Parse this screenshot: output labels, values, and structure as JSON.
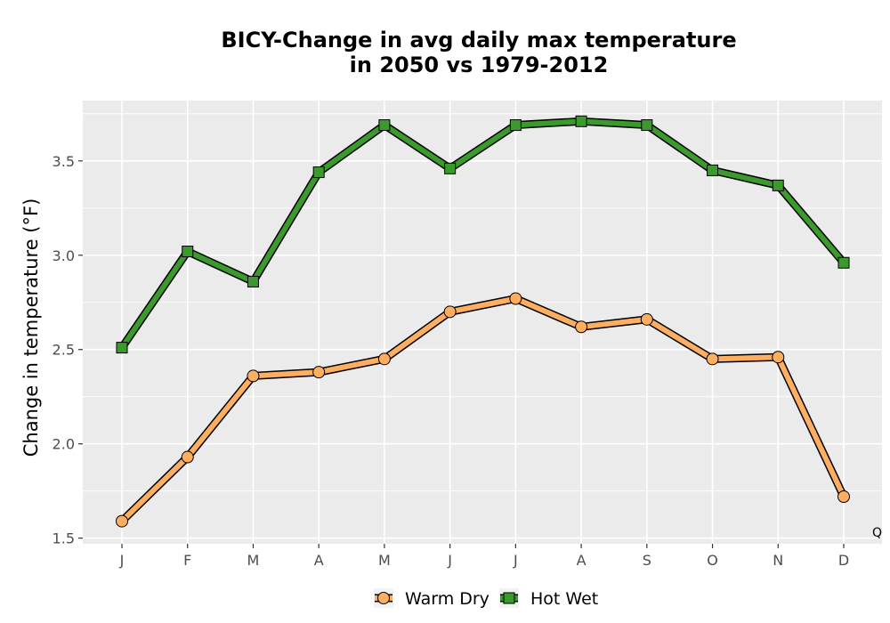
{
  "chart_data": {
    "type": "line",
    "title_lines": [
      "BICY-Change in avg daily max temperature",
      "in 2050 vs 1979-2012"
    ],
    "ylabel": "Change in temperature (°F)",
    "xlabel": "",
    "categories": [
      "J",
      "F",
      "M",
      "A",
      "M",
      "J",
      "J",
      "A",
      "S",
      "O",
      "N",
      "D"
    ],
    "ylim": [
      1.47,
      3.82
    ],
    "yticks": [
      1.5,
      2.0,
      2.5,
      3.0,
      3.5
    ],
    "ytick_labels": [
      "1.5",
      "2.0",
      "2.5",
      "3.0",
      "3.5"
    ],
    "grid": true,
    "legend_position": "bottom",
    "series": [
      {
        "name": "Warm Dry",
        "marker": "circle",
        "fill": "#fdae61",
        "stroke": "#000000",
        "values": [
          1.59,
          1.93,
          2.36,
          2.38,
          2.45,
          2.7,
          2.77,
          2.62,
          2.66,
          2.45,
          2.46,
          1.72
        ]
      },
      {
        "name": "Hot Wet",
        "marker": "square",
        "fill": "#3a9a2b",
        "stroke": "#000000",
        "values": [
          2.51,
          3.02,
          2.86,
          3.44,
          3.69,
          3.46,
          3.69,
          3.71,
          3.69,
          3.45,
          3.37,
          2.96
        ]
      }
    ],
    "annotation": "Q",
    "colors": {
      "panel": "#ebebeb",
      "grid": "#ffffff",
      "axis_text": "#4d4d4d"
    }
  }
}
